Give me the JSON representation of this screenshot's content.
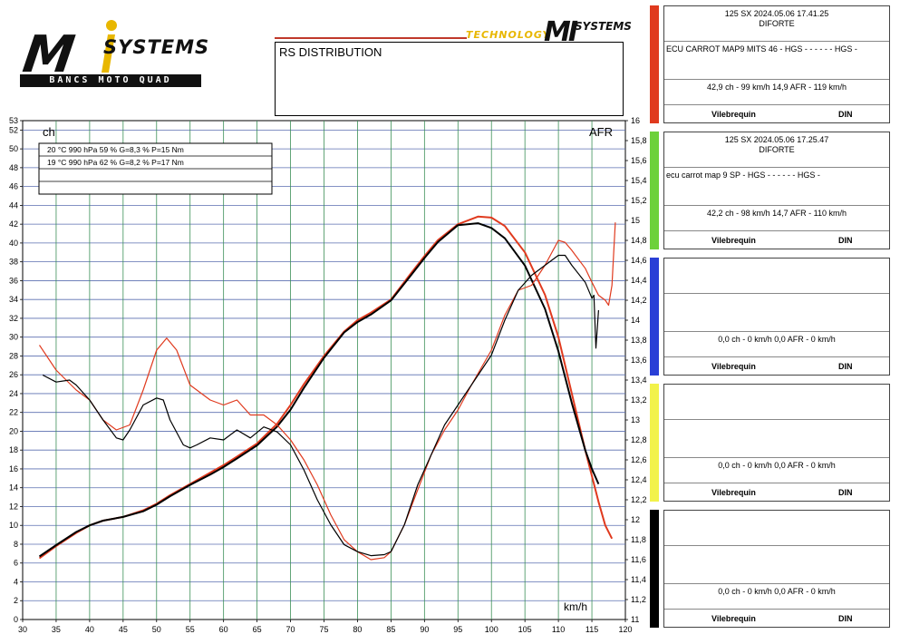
{
  "logo_main": {
    "m": "M",
    "systems": "SYSTEMS",
    "tagline": "BANCS MOTO QUAD"
  },
  "logo_small": {
    "technology": "TECHNOLOGY",
    "mi": "MI",
    "systems": "SYSTEMS"
  },
  "title": "RS DISTRIBUTION",
  "colors": {
    "red": "#e03a1e",
    "black": "#000000",
    "green": "#6dd13a",
    "blue": "#2a3fd6",
    "yellow": "#f2f24a",
    "grid_v": "#3b8f57",
    "grid_h": "#5b6fb0"
  },
  "conditions": [
    "20 °C   990 hPa   59 %   G=8,3 %   P=15 Nm",
    "19 °C   990 hPa   62 %   G=8,2 %   P=17 Nm",
    "",
    ""
  ],
  "panels": [
    {
      "color": "#e03a1e",
      "header1": "125 SX   2024.05.06 17.41.25",
      "header2": "DIFORTE",
      "note": "ECU CARROT MAP9 MITS 46 - HGS - - - - - - HGS -",
      "measure": "42,9 ch - 99 km/h       14,9 AFR - 119 km/h",
      "foot_a": "Vilebrequin",
      "foot_b": "DIN"
    },
    {
      "color": "#6dd13a",
      "header1": "125 SX   2024.05.06 17.25.47",
      "header2": "DIFORTE",
      "note": "ecu carrot map 9 SP  - HGS - - - - - - HGS -",
      "measure": "42,2 ch - 98 km/h       14,7 AFR - 110 km/h",
      "foot_a": "Vilebrequin",
      "foot_b": "DIN"
    },
    {
      "color": "#2a3fd6",
      "header1": "",
      "header2": "",
      "note": "",
      "measure": "0,0 ch - 0 km/h       0,0 AFR - 0 km/h",
      "foot_a": "Vilebrequin",
      "foot_b": "DIN"
    },
    {
      "color": "#f2f24a",
      "header1": "",
      "header2": "",
      "note": "",
      "measure": "0,0 ch - 0 km/h       0,0 AFR - 0 km/h",
      "foot_a": "Vilebrequin",
      "foot_b": "DIN"
    },
    {
      "color": "#000000",
      "header1": "",
      "header2": "",
      "note": "",
      "measure": "0,0 ch - 0 km/h       0,0 AFR - 0 km/h",
      "foot_a": "Vilebrequin",
      "foot_b": "DIN"
    }
  ],
  "chart_data": {
    "type": "line",
    "left_axis_label": "ch",
    "right_axis_label": "AFR",
    "x_axis_label": "km/h",
    "xlim": [
      30,
      120
    ],
    "ylim_left": [
      0,
      53
    ],
    "ylim_right": [
      11,
      16
    ],
    "x_ticks": [
      "30",
      "35",
      "40",
      "45",
      "50",
      "55",
      "60",
      "65",
      "70",
      "75",
      "80",
      "85",
      "90",
      "95",
      "100",
      "105",
      "110",
      "115",
      "120"
    ],
    "y_ticks_left": [
      "0",
      "2",
      "4",
      "6",
      "8",
      "10",
      "12",
      "14",
      "16",
      "18",
      "20",
      "22",
      "24",
      "26",
      "28",
      "30",
      "32",
      "34",
      "36",
      "38",
      "40",
      "42",
      "44",
      "46",
      "48",
      "50",
      "52",
      "53"
    ],
    "y_ticks_right": [
      "11",
      "11,2",
      "11,4",
      "11,6",
      "11,8",
      "12",
      "12,2",
      "12,4",
      "12,6",
      "12,8",
      "13",
      "13,2",
      "13,4",
      "13,6",
      "13,8",
      "14",
      "14,2",
      "14,4",
      "14,6",
      "14,8",
      "15",
      "15,2",
      "15,4",
      "15,6",
      "15,8",
      "16"
    ],
    "grid": true,
    "series": [
      {
        "name": "",
        "axis": "left",
        "color": "#e03a1e",
        "x": [
          32.5,
          35,
          38,
          40,
          42,
          45,
          48,
          50,
          52,
          55,
          58,
          60,
          62,
          65,
          68,
          70,
          72,
          75,
          78,
          80,
          82,
          85,
          88,
          90,
          92,
          95,
          98,
          100,
          102,
          105,
          108,
          110,
          112,
          114,
          116,
          117,
          118
        ],
        "values": [
          6.5,
          7.8,
          9.2,
          10.0,
          10.5,
          10.9,
          11.6,
          12.3,
          13.2,
          14.4,
          15.6,
          16.4,
          17.3,
          18.7,
          20.8,
          22.8,
          25.0,
          28.0,
          30.6,
          31.8,
          32.6,
          34.0,
          36.8,
          38.6,
          40.3,
          42.0,
          42.8,
          42.7,
          41.8,
          39.0,
          34.5,
          30.0,
          24.0,
          18.0,
          12.5,
          10.0,
          8.6
        ]
      },
      {
        "name": "",
        "axis": "left",
        "color": "#000000",
        "x": [
          32.5,
          35,
          38,
          40,
          42,
          45,
          48,
          50,
          52,
          55,
          58,
          60,
          62,
          65,
          68,
          70,
          72,
          75,
          78,
          80,
          82,
          85,
          88,
          90,
          92,
          95,
          98,
          100,
          102,
          105,
          108,
          110,
          112,
          114,
          115,
          116
        ],
        "values": [
          6.7,
          7.9,
          9.3,
          10.0,
          10.5,
          10.9,
          11.5,
          12.2,
          13.1,
          14.3,
          15.4,
          16.2,
          17.1,
          18.5,
          20.5,
          22.3,
          24.6,
          27.8,
          30.5,
          31.6,
          32.4,
          33.9,
          36.6,
          38.4,
          40.1,
          41.9,
          42.1,
          41.6,
          40.5,
          37.6,
          33.0,
          28.5,
          23.0,
          18.0,
          16.0,
          14.4
        ]
      },
      {
        "name": "",
        "axis": "right",
        "color": "#e03a1e",
        "x": [
          32.5,
          35,
          38,
          40,
          42,
          44,
          46,
          48,
          50,
          51.5,
          53,
          55,
          58,
          60,
          62,
          64,
          66,
          68,
          70,
          72,
          74,
          76,
          78,
          80,
          82,
          84,
          85,
          87,
          89,
          91,
          93,
          95,
          97,
          100,
          102,
          104,
          106,
          108,
          110,
          111,
          112,
          114,
          115,
          116,
          117,
          117.5,
          118,
          118.5
        ],
        "values": [
          13.75,
          13.5,
          13.3,
          13.2,
          13.0,
          12.9,
          12.95,
          13.3,
          13.7,
          13.82,
          13.7,
          13.35,
          13.2,
          13.15,
          13.2,
          13.05,
          13.05,
          12.95,
          12.8,
          12.6,
          12.35,
          12.05,
          11.8,
          11.68,
          11.6,
          11.62,
          11.68,
          11.95,
          12.3,
          12.65,
          12.9,
          13.1,
          13.35,
          13.7,
          14.05,
          14.3,
          14.35,
          14.55,
          14.8,
          14.78,
          14.7,
          14.52,
          14.38,
          14.25,
          14.2,
          14.15,
          14.35,
          14.98
        ]
      },
      {
        "name": "",
        "axis": "right",
        "color": "#000000",
        "x": [
          33,
          35,
          37,
          38,
          40,
          42,
          44,
          45,
          46,
          48,
          50,
          51,
          52,
          54,
          55,
          56,
          58,
          60,
          62,
          64,
          66,
          68,
          70,
          72,
          74,
          76,
          78,
          80,
          82,
          84,
          85,
          87,
          89,
          91,
          93,
          95,
          97,
          100,
          102,
          104,
          106,
          108,
          110,
          111,
          112,
          114,
          115,
          115.3,
          115.6,
          116
        ],
        "values": [
          13.45,
          13.38,
          13.4,
          13.35,
          13.2,
          13.0,
          12.82,
          12.8,
          12.9,
          13.15,
          13.22,
          13.2,
          13.0,
          12.75,
          12.72,
          12.75,
          12.82,
          12.8,
          12.9,
          12.82,
          12.93,
          12.88,
          12.75,
          12.5,
          12.2,
          11.95,
          11.75,
          11.68,
          11.64,
          11.65,
          11.68,
          11.95,
          12.35,
          12.65,
          12.95,
          13.15,
          13.35,
          13.65,
          14.0,
          14.3,
          14.45,
          14.55,
          14.65,
          14.65,
          14.55,
          14.38,
          14.22,
          14.25,
          13.72,
          14.1
        ]
      }
    ]
  }
}
